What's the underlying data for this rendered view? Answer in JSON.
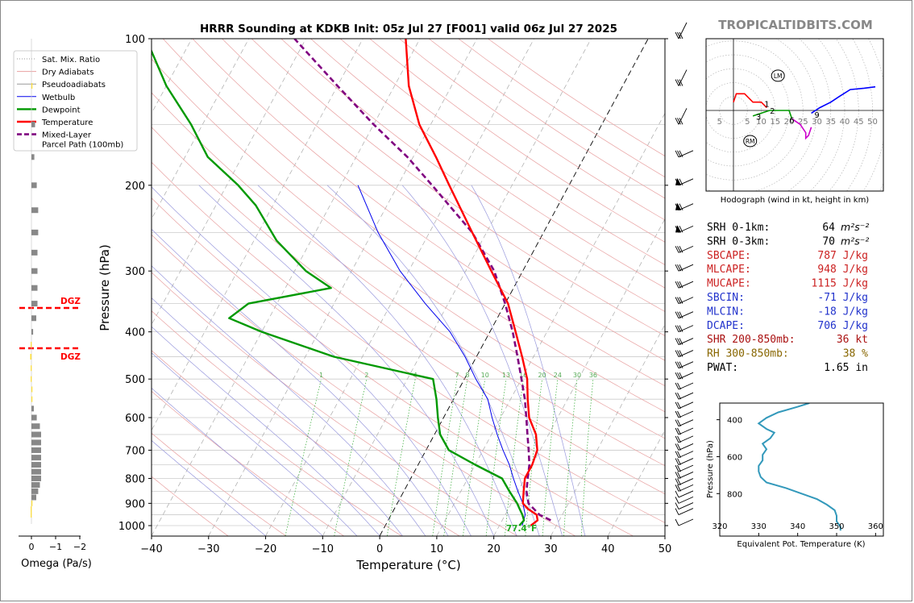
{
  "chart_data": [
    {
      "type": "line",
      "title": "HRRR Sounding at KDKB Init: 05z Jul 27 [F001] valid 06z Jul 27 2025",
      "xlabel": "Temperature (°C)",
      "ylabel": "Pressure (hPa)",
      "xlim": [
        -40,
        50
      ],
      "ylim": [
        1050,
        100
      ],
      "y_scale": "log",
      "skew": true,
      "x_ticks": [
        "−40",
        "−30",
        "−20",
        "−10",
        "0",
        "10",
        "20",
        "30",
        "40",
        "50"
      ],
      "y_ticks": [
        "100",
        "200",
        "300",
        "400",
        "500",
        "600",
        "700",
        "800",
        "900",
        "1000"
      ],
      "legend": {
        "position": "top-left",
        "entries": [
          "Sat. Mix. Ratio",
          "Dry Adiabats",
          "Pseudoadiabats",
          "Wetbulb",
          "Dewpoint",
          "Temperature",
          "Mixed-Layer\nParcel Path (100mb)"
        ]
      },
      "mixing_ratio_labels": [
        "1",
        "2",
        "4",
        "7",
        "8",
        "10",
        "13",
        "16",
        "20",
        "24",
        "30",
        "36"
      ],
      "surface_label": "77.4°F",
      "series": [
        {
          "name": "Temperature",
          "color": "#ff0000",
          "points": [
            [
              1000,
              25.5
            ],
            [
              975,
              26.2
            ],
            [
              950,
              25.5
            ],
            [
              925,
              23.5
            ],
            [
              900,
              22.0
            ],
            [
              850,
              21.0
            ],
            [
              800,
              20.0
            ],
            [
              750,
              20.0
            ],
            [
              700,
              19.5
            ],
            [
              650,
              17.8
            ],
            [
              600,
              15.0
            ],
            [
              550,
              13.0
            ],
            [
              500,
              11.0
            ],
            [
              450,
              8.0
            ],
            [
              400,
              4.5
            ],
            [
              350,
              0.5
            ],
            [
              300,
              -5.5
            ],
            [
              250,
              -12.5
            ],
            [
              200,
              -21.0
            ],
            [
              175,
              -26.0
            ],
            [
              150,
              -32.0
            ],
            [
              125,
              -37.5
            ],
            [
              100,
              -42.5
            ]
          ]
        },
        {
          "name": "Dewpoint",
          "color": "#009900",
          "points": [
            [
              1000,
              23.5
            ],
            [
              975,
              23.8
            ],
            [
              950,
              23.0
            ],
            [
              925,
              22.0
            ],
            [
              900,
              21.0
            ],
            [
              850,
              18.5
            ],
            [
              800,
              16.0
            ],
            [
              750,
              10.0
            ],
            [
              700,
              4.0
            ],
            [
              650,
              1.0
            ],
            [
              600,
              -1.0
            ],
            [
              550,
              -3.0
            ],
            [
              500,
              -5.5
            ],
            [
              450,
              -25.0
            ],
            [
              400,
              -40.0
            ],
            [
              375,
              -47.0
            ],
            [
              350,
              -45.0
            ],
            [
              325,
              -32.0
            ],
            [
              300,
              -38.0
            ],
            [
              260,
              -46.0
            ],
            [
              220,
              -53.0
            ],
            [
              200,
              -58.0
            ],
            [
              175,
              -66.0
            ],
            [
              150,
              -72.0
            ],
            [
              125,
              -80.0
            ],
            [
              100,
              -88.0
            ]
          ]
        },
        {
          "name": "Wetbulb",
          "color": "#0000ee",
          "points": [
            [
              1000,
              24.0
            ],
            [
              950,
              23.5
            ],
            [
              900,
              22.0
            ],
            [
              850,
              20.0
            ],
            [
              800,
              18.0
            ],
            [
              750,
              16.0
            ],
            [
              700,
              13.5
            ],
            [
              650,
              11.0
            ],
            [
              600,
              8.5
            ],
            [
              550,
              6.0
            ],
            [
              500,
              2.0
            ],
            [
              450,
              -2.0
            ],
            [
              400,
              -7.0
            ],
            [
              350,
              -14.0
            ],
            [
              300,
              -21.5
            ],
            [
              250,
              -29.0
            ],
            [
              200,
              -37.0
            ]
          ]
        },
        {
          "name": "Mixed-Layer Parcel Path (100mb)",
          "color": "#800080",
          "points": [
            [
              975,
              28.5
            ],
            [
              950,
              26.0
            ],
            [
              900,
              23.0
            ],
            [
              850,
              21.5
            ],
            [
              800,
              20.5
            ],
            [
              750,
              19.5
            ],
            [
              700,
              18.0
            ],
            [
              650,
              16.3
            ],
            [
              600,
              14.5
            ],
            [
              550,
              12.5
            ],
            [
              500,
              10.0
            ],
            [
              450,
              7.2
            ],
            [
              400,
              4.0
            ],
            [
              350,
              0.0
            ],
            [
              300,
              -5.0
            ],
            [
              250,
              -12.5
            ],
            [
              200,
              -24.0
            ],
            [
              175,
              -31.0
            ],
            [
              150,
              -40.0
            ],
            [
              125,
              -50.0
            ],
            [
              100,
              -62.0
            ]
          ]
        }
      ],
      "dgz_label": "DGZ"
    },
    {
      "type": "bar",
      "name": "omega",
      "xlabel": "Omega (Pa/s)",
      "x_ticks": [
        "0",
        "−1",
        "−2"
      ],
      "xlim": [
        0.1,
        -2.5
      ],
      "values": [
        [
          125,
          0.03
        ],
        [
          150,
          0.15
        ],
        [
          175,
          0.12
        ],
        [
          200,
          0.22
        ],
        [
          225,
          0.28
        ],
        [
          250,
          0.28
        ],
        [
          275,
          0.25
        ],
        [
          300,
          0.25
        ],
        [
          325,
          0.25
        ],
        [
          350,
          0.25
        ],
        [
          375,
          0.2
        ],
        [
          400,
          0.07
        ],
        [
          425,
          -0.03
        ],
        [
          450,
          -0.05
        ],
        [
          475,
          -0.03
        ],
        [
          500,
          -0.03
        ],
        [
          525,
          0.03
        ],
        [
          550,
          0.03
        ],
        [
          575,
          0.1
        ],
        [
          600,
          0.22
        ],
        [
          625,
          0.35
        ],
        [
          650,
          0.4
        ],
        [
          675,
          0.4
        ],
        [
          700,
          0.4
        ],
        [
          725,
          0.4
        ],
        [
          750,
          0.4
        ],
        [
          775,
          0.4
        ],
        [
          800,
          0.4
        ],
        [
          825,
          0.35
        ],
        [
          850,
          0.28
        ],
        [
          875,
          0.2
        ],
        [
          900,
          0.03
        ],
        [
          925,
          -0.03
        ],
        [
          950,
          -0.03
        ]
      ]
    },
    {
      "type": "line",
      "name": "hodograph",
      "caption": "Hodograph (wind in kt, height in km)",
      "ring_labels": [
        "5",
        "5",
        "10",
        "15",
        "20",
        "25",
        "30",
        "35",
        "40",
        "45",
        "50"
      ],
      "height_labels": [
        "1",
        "2",
        "3",
        "6",
        "9"
      ],
      "storm_motion_labels": [
        "LM",
        "RM"
      ],
      "segments": [
        {
          "color": "#ff0000",
          "points": [
            [
              0,
              3
            ],
            [
              1,
              6
            ],
            [
              4,
              6
            ],
            [
              7,
              3
            ],
            [
              10,
              3
            ],
            [
              12,
              1
            ]
          ]
        },
        {
          "color": "#009900",
          "points": [
            [
              7,
              -2
            ],
            [
              10,
              -1
            ],
            [
              13,
              0
            ],
            [
              17,
              0
            ],
            [
              20,
              0
            ],
            [
              21,
              -3
            ]
          ]
        },
        {
          "color": "#cc00cc",
          "points": [
            [
              21,
              -3
            ],
            [
              24,
              -5
            ],
            [
              26,
              -8
            ],
            [
              26,
              -10
            ],
            [
              27,
              -9
            ],
            [
              28,
              -6
            ]
          ]
        },
        {
          "color": "#0000ff",
          "points": [
            [
              28,
              -1
            ],
            [
              31,
              1
            ],
            [
              35,
              3
            ],
            [
              38,
              5
            ],
            [
              42,
              7.5
            ],
            [
              47,
              8
            ],
            [
              51,
              8.5
            ]
          ]
        }
      ]
    },
    {
      "type": "line",
      "name": "theta-e",
      "xlabel": "Equivalent Pot. Temperature (K)",
      "ylabel": "Pressure (hPa)",
      "xlim": [
        320,
        362
      ],
      "x_ticks": [
        "320",
        "330",
        "340",
        "350",
        "360"
      ],
      "y_ticks": [
        "400",
        "600",
        "800"
      ],
      "color": "#3399bb",
      "points": [
        [
          310,
          343
        ],
        [
          330,
          340
        ],
        [
          360,
          335
        ],
        [
          390,
          332
        ],
        [
          420,
          330
        ],
        [
          450,
          332
        ],
        [
          470,
          334
        ],
        [
          500,
          333
        ],
        [
          530,
          331
        ],
        [
          560,
          332
        ],
        [
          590,
          331
        ],
        [
          620,
          331
        ],
        [
          650,
          330
        ],
        [
          680,
          330
        ],
        [
          710,
          330.5
        ],
        [
          740,
          332
        ],
        [
          770,
          337
        ],
        [
          800,
          341
        ],
        [
          830,
          345
        ],
        [
          860,
          347.5
        ],
        [
          890,
          349.5
        ],
        [
          920,
          350
        ],
        [
          950,
          350
        ],
        [
          980,
          351
        ],
        [
          1000,
          351
        ]
      ]
    }
  ],
  "site": {
    "watermark": "TROPICALTIDBITS.COM"
  },
  "stats": [
    {
      "label": "SRH 0-1km:",
      "value": "64",
      "unit": "m²s⁻²",
      "color": "#000000"
    },
    {
      "label": "SRH 0-3km:",
      "value": "70",
      "unit": "m²s⁻²",
      "color": "#000000"
    },
    {
      "label": "SBCAPE:",
      "value": "787 J/kg",
      "unit": "",
      "color": "#cc2222"
    },
    {
      "label": "MLCAPE:",
      "value": "948 J/kg",
      "unit": "",
      "color": "#cc2222"
    },
    {
      "label": "MUCAPE:",
      "value": "1115 J/kg",
      "unit": "",
      "color": "#cc2222"
    },
    {
      "label": "SBCIN:",
      "value": "-71 J/kg",
      "unit": "",
      "color": "#2233cc"
    },
    {
      "label": "MLCIN:",
      "value": "-18 J/kg",
      "unit": "",
      "color": "#2233cc"
    },
    {
      "label": "DCAPE:",
      "value": "706 J/kg",
      "unit": "",
      "color": "#2233cc"
    },
    {
      "label": "SHR 200-850mb:",
      "value": "36 kt",
      "unit": "",
      "color": "#aa1111"
    },
    {
      "label": "RH 300-850mb:",
      "value": "38 %",
      "unit": "",
      "color": "#886600"
    },
    {
      "label": "PWAT:",
      "value": "1.65 in",
      "unit": "",
      "color": "#000000"
    }
  ]
}
